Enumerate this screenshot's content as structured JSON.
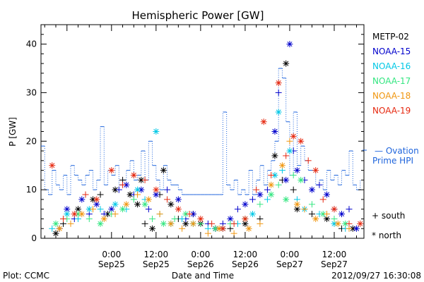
{
  "chart_data": {
    "type": "scatter",
    "title": "Hemispheric Power [GW]",
    "xlabel": "Date and Time",
    "ylabel": "P [GW]",
    "ylim": [
      0,
      44
    ],
    "xlim": [
      -19,
      68
    ],
    "x_unit": "hours relative to 2012/09/25 00:00 UT",
    "yticks": [
      0,
      10,
      20,
      30,
      40
    ],
    "xticks": [
      {
        "x": 0,
        "time": "0:00",
        "date": "Sep25"
      },
      {
        "x": 12,
        "time": "12:00",
        "date": "Sep25"
      },
      {
        "x": 24,
        "time": "0:00",
        "date": "Sep26"
      },
      {
        "x": 36,
        "time": "12:00",
        "date": "Sep26"
      },
      {
        "x": 48,
        "time": "0:00",
        "date": "Sep27"
      },
      {
        "x": 60,
        "time": "12:00",
        "date": "Sep27"
      }
    ],
    "grid": false,
    "legend_position": "right",
    "series": [
      {
        "name": "METP-02",
        "color": "#000000",
        "points": [
          [
            -15,
            1,
            "*"
          ],
          [
            -13,
            3,
            "+"
          ],
          [
            -9,
            6,
            "*"
          ],
          [
            -5,
            8,
            "*"
          ],
          [
            -3,
            9,
            "+"
          ],
          [
            -1,
            5,
            "*"
          ],
          [
            1,
            10,
            "*"
          ],
          [
            3,
            12,
            "+"
          ],
          [
            5,
            9,
            "*"
          ],
          [
            7,
            7,
            "*"
          ],
          [
            8,
            12,
            "*"
          ],
          [
            9,
            3,
            "+"
          ],
          [
            11,
            2,
            "*"
          ],
          [
            13,
            9,
            "+"
          ],
          [
            14,
            14,
            "*"
          ],
          [
            16,
            7,
            "*"
          ],
          [
            18,
            4,
            "+"
          ],
          [
            20,
            3,
            "*"
          ],
          [
            22,
            5,
            "+"
          ],
          [
            24,
            3,
            "*"
          ],
          [
            28,
            2,
            "*"
          ],
          [
            32,
            2,
            "+"
          ],
          [
            36,
            3,
            "*"
          ],
          [
            40,
            4,
            "+"
          ],
          [
            44,
            17,
            "*"
          ],
          [
            46,
            12,
            "+"
          ],
          [
            47,
            36,
            "*"
          ],
          [
            49,
            10,
            "+"
          ],
          [
            50,
            6,
            "*"
          ],
          [
            54,
            5,
            "+"
          ],
          [
            58,
            4,
            "*"
          ],
          [
            62,
            2,
            "+"
          ],
          [
            65,
            2,
            "*"
          ]
        ]
      },
      {
        "name": "NOAA-15",
        "color": "#0000cc",
        "points": [
          [
            -14,
            2,
            "+"
          ],
          [
            -12,
            6,
            "*"
          ],
          [
            -10,
            4,
            "+"
          ],
          [
            -8,
            8,
            "*"
          ],
          [
            -6,
            5,
            "+"
          ],
          [
            -4,
            7,
            "*"
          ],
          [
            -2,
            5,
            "+"
          ],
          [
            0,
            6,
            "*"
          ],
          [
            2,
            10,
            "+"
          ],
          [
            4,
            11,
            "*"
          ],
          [
            6,
            9,
            "+"
          ],
          [
            8,
            10,
            "*"
          ],
          [
            10,
            6,
            "+"
          ],
          [
            12,
            9,
            "*"
          ],
          [
            15,
            10,
            "+"
          ],
          [
            18,
            8,
            "*"
          ],
          [
            20,
            4,
            "+"
          ],
          [
            22,
            5,
            "*"
          ],
          [
            26,
            3,
            "+"
          ],
          [
            28,
            2,
            "*"
          ],
          [
            30,
            3,
            "+"
          ],
          [
            32,
            4,
            "*"
          ],
          [
            34,
            6,
            "+"
          ],
          [
            36,
            7,
            "*"
          ],
          [
            38,
            8,
            "+"
          ],
          [
            40,
            9,
            "*"
          ],
          [
            42,
            10,
            "+"
          ],
          [
            44,
            22,
            "*"
          ],
          [
            45,
            30,
            "+"
          ],
          [
            47,
            12,
            "*"
          ],
          [
            48,
            40,
            "*"
          ],
          [
            49,
            18,
            "+"
          ],
          [
            50,
            14,
            "*"
          ],
          [
            52,
            12,
            "+"
          ],
          [
            54,
            10,
            "*"
          ],
          [
            56,
            11,
            "+"
          ],
          [
            58,
            9,
            "*"
          ],
          [
            60,
            6,
            "+"
          ],
          [
            62,
            5,
            "*"
          ],
          [
            64,
            6,
            "+"
          ],
          [
            66,
            2,
            "*"
          ]
        ]
      },
      {
        "name": "NOAA-16",
        "color": "#00c8e6",
        "points": [
          [
            -16,
            2,
            "+"
          ],
          [
            -12,
            5,
            "*"
          ],
          [
            -9,
            4,
            "+"
          ],
          [
            -6,
            6,
            "*"
          ],
          [
            -3,
            6,
            "+"
          ],
          [
            1,
            7,
            "*"
          ],
          [
            4,
            6,
            "+"
          ],
          [
            7,
            10,
            "*"
          ],
          [
            9,
            8,
            "+"
          ],
          [
            12,
            22,
            "*"
          ],
          [
            13,
            5,
            "+"
          ],
          [
            16,
            3,
            "*"
          ],
          [
            19,
            4,
            "+"
          ],
          [
            22,
            3,
            "*"
          ],
          [
            26,
            2,
            "+"
          ],
          [
            30,
            2,
            "*"
          ],
          [
            34,
            3,
            "+"
          ],
          [
            38,
            5,
            "*"
          ],
          [
            42,
            8,
            "+"
          ],
          [
            44,
            13,
            "*"
          ],
          [
            45,
            26,
            "*"
          ],
          [
            46,
            14,
            "+"
          ],
          [
            48,
            18,
            "*"
          ],
          [
            50,
            8,
            "+"
          ],
          [
            52,
            6,
            "*"
          ],
          [
            56,
            5,
            "+"
          ],
          [
            60,
            3,
            "*"
          ],
          [
            63,
            2,
            "+"
          ]
        ]
      },
      {
        "name": "NOAA-17",
        "color": "#33e680",
        "points": [
          [
            -15,
            3,
            "*"
          ],
          [
            -12,
            4,
            "+"
          ],
          [
            -9,
            5,
            "*"
          ],
          [
            -6,
            4,
            "+"
          ],
          [
            -3,
            3,
            "*"
          ],
          [
            0,
            5,
            "+"
          ],
          [
            3,
            6,
            "*"
          ],
          [
            6,
            8,
            "+"
          ],
          [
            9,
            7,
            "*"
          ],
          [
            11,
            4,
            "+"
          ],
          [
            14,
            3,
            "*"
          ],
          [
            17,
            4,
            "+"
          ],
          [
            20,
            5,
            "*"
          ],
          [
            24,
            3,
            "+"
          ],
          [
            28,
            2,
            "*"
          ],
          [
            32,
            3,
            "+"
          ],
          [
            36,
            4,
            "*"
          ],
          [
            40,
            7,
            "+"
          ],
          [
            43,
            9,
            "*"
          ],
          [
            45,
            11,
            "+"
          ],
          [
            47,
            8,
            "*"
          ],
          [
            49,
            13,
            "+"
          ],
          [
            51,
            12,
            "*"
          ],
          [
            54,
            7,
            "+"
          ],
          [
            57,
            5,
            "*"
          ],
          [
            60,
            4,
            "+"
          ],
          [
            63,
            3,
            "*"
          ]
        ]
      },
      {
        "name": "NOAA-18",
        "color": "#f0960f",
        "points": [
          [
            -14,
            2,
            "*"
          ],
          [
            -11,
            3,
            "+"
          ],
          [
            -8,
            5,
            "*"
          ],
          [
            -5,
            6,
            "+"
          ],
          [
            -2,
            4,
            "*"
          ],
          [
            1,
            5,
            "+"
          ],
          [
            4,
            7,
            "*"
          ],
          [
            7,
            9,
            "+"
          ],
          [
            10,
            8,
            "*"
          ],
          [
            13,
            5,
            "+"
          ],
          [
            16,
            3,
            "*"
          ],
          [
            19,
            2,
            "+"
          ],
          [
            22,
            3,
            "*"
          ],
          [
            26,
            1,
            "+"
          ],
          [
            29,
            2,
            "*"
          ],
          [
            33,
            1,
            "+"
          ],
          [
            37,
            2,
            "*"
          ],
          [
            40,
            3,
            "+"
          ],
          [
            43,
            11,
            "*"
          ],
          [
            46,
            15,
            "*"
          ],
          [
            48,
            20,
            "+"
          ],
          [
            50,
            7,
            "*"
          ],
          [
            52,
            6,
            "+"
          ],
          [
            55,
            4,
            "*"
          ],
          [
            58,
            5,
            "+"
          ],
          [
            61,
            3,
            "*"
          ],
          [
            64,
            2,
            "+"
          ]
        ]
      },
      {
        "name": "NOAA-19",
        "color": "#e6280f",
        "points": [
          [
            -16,
            15,
            "*"
          ],
          [
            -13,
            4,
            "+"
          ],
          [
            -10,
            5,
            "*"
          ],
          [
            -7,
            9,
            "+"
          ],
          [
            -4,
            8,
            "*"
          ],
          [
            0,
            14,
            "*"
          ],
          [
            3,
            11,
            "+"
          ],
          [
            6,
            13,
            "*"
          ],
          [
            9,
            12,
            "+"
          ],
          [
            12,
            10,
            "*"
          ],
          [
            15,
            8,
            "+"
          ],
          [
            18,
            6,
            "*"
          ],
          [
            21,
            5,
            "+"
          ],
          [
            24,
            4,
            "*"
          ],
          [
            27,
            3,
            "+"
          ],
          [
            30,
            2,
            "*"
          ],
          [
            33,
            3,
            "+"
          ],
          [
            36,
            4,
            "*"
          ],
          [
            39,
            10,
            "+"
          ],
          [
            41,
            24,
            "*"
          ],
          [
            43,
            13,
            "+"
          ],
          [
            45,
            32,
            "*"
          ],
          [
            47,
            17,
            "+"
          ],
          [
            49,
            21,
            "*"
          ],
          [
            51,
            20,
            "*"
          ],
          [
            53,
            16,
            "+"
          ],
          [
            55,
            14,
            "*"
          ],
          [
            57,
            8,
            "+"
          ],
          [
            60,
            6,
            "*"
          ],
          [
            64,
            3,
            "+"
          ],
          [
            67,
            3,
            "*"
          ]
        ]
      }
    ],
    "ovation": {
      "name": "Ovation Prime HPI",
      "color": "#1e64dc",
      "x": [
        -19,
        -18,
        -17,
        -16,
        -15,
        -14,
        -13,
        -12,
        -11,
        -10,
        -9,
        -8,
        -7,
        -6,
        -5,
        -4,
        -3,
        -2,
        -1,
        0,
        1,
        2,
        3,
        4,
        5,
        6,
        7,
        8,
        9,
        10,
        11,
        12,
        13,
        14,
        15,
        16,
        17,
        18,
        19,
        20,
        21,
        22,
        23,
        24,
        25,
        26,
        27,
        28,
        29,
        30,
        31,
        32,
        33,
        34,
        35,
        36,
        37,
        38,
        39,
        40,
        41,
        42,
        43,
        44,
        45,
        46,
        47,
        48,
        49,
        50,
        51,
        52,
        53,
        54,
        55,
        56,
        57,
        58,
        59,
        60,
        61,
        62,
        63,
        64,
        65,
        66,
        67
      ],
      "y": [
        19,
        10,
        9,
        14,
        11,
        10,
        13,
        9,
        15,
        13,
        12,
        11,
        13,
        14,
        10,
        12,
        23,
        11,
        14,
        13,
        15,
        11,
        12,
        14,
        16,
        12,
        13,
        18,
        12,
        20,
        15,
        12,
        10,
        15,
        12,
        11,
        11,
        10,
        9,
        9,
        9,
        9,
        9,
        9,
        9,
        9,
        9,
        9,
        9,
        26,
        11,
        10,
        12,
        9,
        10,
        9,
        14,
        9,
        12,
        15,
        11,
        14,
        16,
        20,
        35,
        33,
        24,
        13,
        26,
        15,
        19,
        16,
        14,
        14,
        11,
        12,
        10,
        14,
        12,
        13,
        11,
        14,
        13,
        18,
        11,
        10,
        12
      ]
    },
    "marker_legend": [
      {
        "symbol": "+",
        "label": "south"
      },
      {
        "symbol": "*",
        "label": "north"
      }
    ]
  },
  "footer": {
    "left": "Plot: CCMC",
    "right": "2012/09/27 16:30:08"
  }
}
